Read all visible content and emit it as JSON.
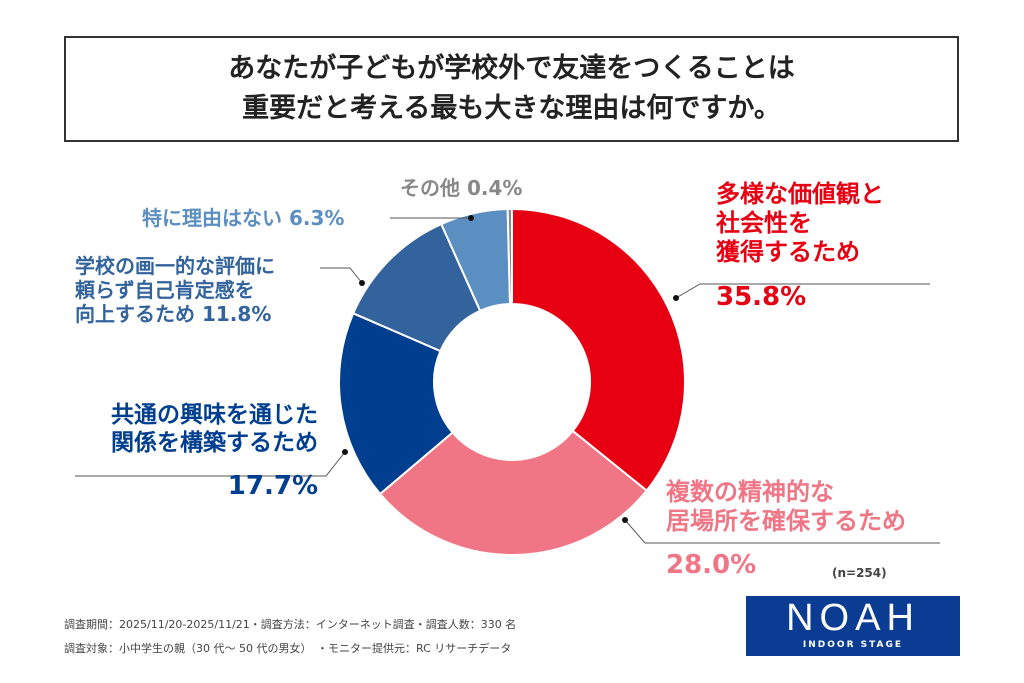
{
  "title": {
    "line1": "あなたが子どもが学校外で友達をつくることは",
    "line2": "重要だと考える最も大きな理由は何ですか。"
  },
  "chart_data": {
    "type": "pie",
    "donut": true,
    "start": "top-clockwise",
    "slices": [
      {
        "label_lines": [
          "多様な価値観と",
          "社会性を",
          "獲得するため"
        ],
        "value": 35.8,
        "value_label": "35.8%",
        "color": "#e60012"
      },
      {
        "label_lines": [
          "複数の精神的な",
          "居場所を確保するため"
        ],
        "value": 28.0,
        "value_label": "28.0%",
        "color": "#f07585"
      },
      {
        "label_lines": [
          "共通の興味を通じた",
          "関係を構築するため"
        ],
        "value": 17.7,
        "value_label": "17.7%",
        "color": "#003f8f"
      },
      {
        "label_lines": [
          "学校の画一的な評価に",
          "頼らず自己肯定感を",
          "向上するため"
        ],
        "value": 11.8,
        "value_label": "11.8%",
        "color": "#33639c"
      },
      {
        "label_lines": [
          "特に理由はない"
        ],
        "value": 6.3,
        "value_label": "6.3%",
        "color": "#5b8fc2"
      },
      {
        "label_lines": [
          "その他"
        ],
        "value": 0.4,
        "value_label": "0.4%",
        "color": "#888888"
      }
    ],
    "note": "(n=254)"
  },
  "footer": {
    "line1": "調査期間：2025/11/20-2025/11/21・調査方法：インターネット調査・調査人数：330 名",
    "line2": "調査対象：小中学生の親（30 代～ 50 代の男女）　・モニター提供元：RC リサーチデータ"
  },
  "logo": {
    "name": "NOAH",
    "sub": "INDOOR STAGE"
  }
}
